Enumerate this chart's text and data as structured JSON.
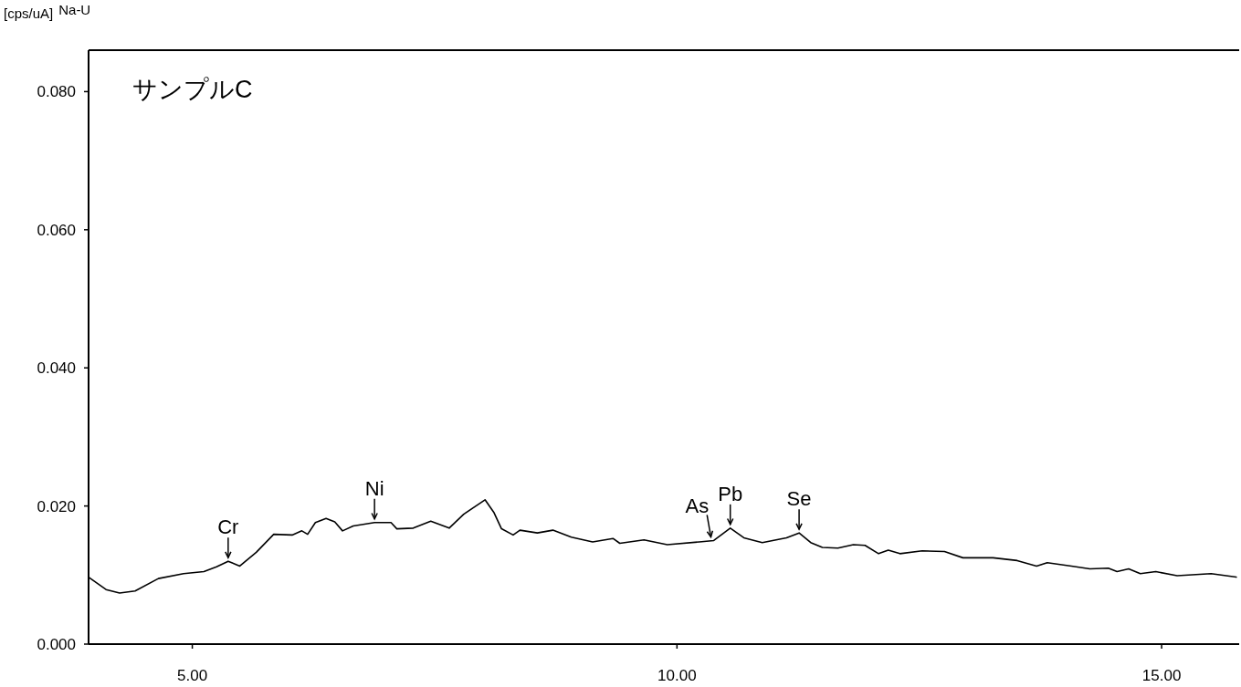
{
  "chart_data": {
    "type": "line",
    "title": "サンプルC",
    "ylabel": "[cps/uA]",
    "annotations": [
      "Na-U",
      {
        "text": "Cr",
        "x": 5.37,
        "y": 0.012
      },
      {
        "text": "Ni",
        "x": 6.88,
        "y": 0.0176
      },
      {
        "text": "As",
        "x": 10.35,
        "y": 0.015
      },
      {
        "text": "Pb",
        "x": 10.55,
        "y": 0.0168
      },
      {
        "text": "Se",
        "x": 11.26,
        "y": 0.0161
      }
    ],
    "xlim": [
      3.93,
      15.8
    ],
    "ylim": [
      0,
      0.086
    ],
    "xticks": [
      {
        "value": 5,
        "label": "5.00"
      },
      {
        "value": 10,
        "label": "10.00"
      },
      {
        "value": 15,
        "label": "15.00"
      }
    ],
    "yticks": [
      {
        "value": 0,
        "label": "0.000"
      },
      {
        "value": 0.02,
        "label": "0.020"
      },
      {
        "value": 0.04,
        "label": "0.040"
      },
      {
        "value": 0.06,
        "label": "0.060"
      },
      {
        "value": 0.08,
        "label": "0.080"
      }
    ],
    "grid": false,
    "series": [
      {
        "color": "#000000",
        "line_style": "solid",
        "x": [
          3.93,
          4.11,
          4.25,
          4.41,
          4.65,
          4.91,
          5.12,
          5.25,
          5.37,
          5.49,
          5.66,
          5.84,
          6.03,
          6.13,
          6.19,
          6.27,
          6.38,
          6.47,
          6.55,
          6.66,
          6.88,
          7.05,
          7.11,
          7.28,
          7.46,
          7.65,
          7.8,
          8.02,
          8.11,
          8.19,
          8.31,
          8.38,
          8.56,
          8.72,
          8.91,
          9.13,
          9.34,
          9.41,
          9.66,
          9.9,
          10.23,
          10.38,
          10.55,
          10.69,
          10.88,
          11.13,
          11.26,
          11.38,
          11.5,
          11.66,
          11.82,
          11.94,
          12.08,
          12.18,
          12.3,
          12.53,
          12.76,
          12.95,
          13.26,
          13.51,
          13.71,
          13.82,
          14.07,
          14.26,
          14.45,
          14.54,
          14.66,
          14.78,
          14.94,
          15.16,
          15.51,
          15.77
        ],
        "values": [
          0.0097,
          0.0079,
          0.0074,
          0.0077,
          0.0095,
          0.0102,
          0.0105,
          0.0112,
          0.012,
          0.0113,
          0.0133,
          0.0159,
          0.0158,
          0.0164,
          0.0159,
          0.0176,
          0.0182,
          0.0177,
          0.0164,
          0.0171,
          0.0176,
          0.0176,
          0.0167,
          0.0168,
          0.0178,
          0.0168,
          0.0188,
          0.0209,
          0.0191,
          0.0167,
          0.0158,
          0.0165,
          0.0161,
          0.0165,
          0.0155,
          0.0148,
          0.0153,
          0.0146,
          0.0151,
          0.0144,
          0.0148,
          0.015,
          0.0168,
          0.0154,
          0.0147,
          0.0154,
          0.0161,
          0.0147,
          0.014,
          0.0139,
          0.0144,
          0.0143,
          0.0131,
          0.0136,
          0.0131,
          0.0135,
          0.0134,
          0.0125,
          0.0125,
          0.0121,
          0.0113,
          0.0118,
          0.0113,
          0.0109,
          0.011,
          0.0105,
          0.0109,
          0.0102,
          0.0105,
          0.0099,
          0.0102,
          0.0097
        ]
      }
    ]
  }
}
